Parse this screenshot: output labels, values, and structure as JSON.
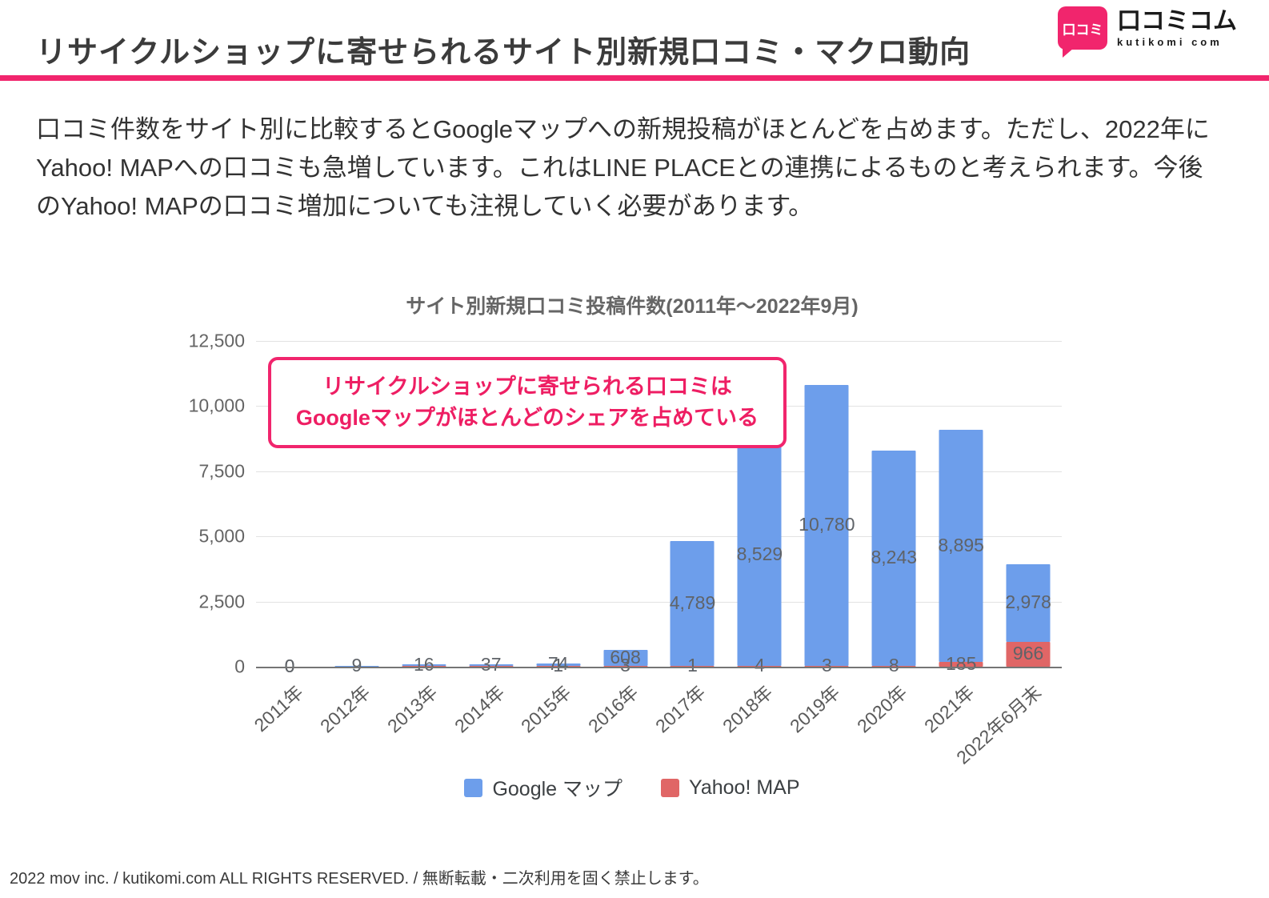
{
  "header": {
    "title": "リサイクルショップに寄せられるサイト別新規口コミ・マクロ動向",
    "logo": {
      "icon_text": "口コミ",
      "name": "口コミコム",
      "subtitle": "kutikomi com"
    },
    "accent_color": "#f1256d"
  },
  "body": {
    "paragraph": "口コミ件数をサイト別に比較するとGoogleマップへの新規投稿がほとんどを占めます。ただし、2022年にYahoo! MAPへの口コミも急増しています。これはLINE PLACEとの連携によるものと考えられます。今後のYahoo! MAPの口コミ増加についても注視していく必要があります。"
  },
  "chart_data": {
    "type": "bar",
    "stacked": true,
    "title": "サイト別新規口コミ投稿件数(2011年〜2022年9月)",
    "categories": [
      "2011年",
      "2012年",
      "2013年",
      "2014年",
      "2015年",
      "2016年",
      "2017年",
      "2018年",
      "2019年",
      "2020年",
      "2021年",
      "2022年6月末"
    ],
    "series": [
      {
        "name": "Google マップ",
        "color": "#6d9eeb",
        "values": [
          0,
          9,
          16,
          37,
          74,
          608,
          4789,
          8529,
          10780,
          8243,
          8895,
          2978
        ],
        "labels": [
          "0",
          "9",
          "16",
          "37",
          "74",
          "608",
          "4,789",
          "8,529",
          "10,780",
          "8,243",
          "8,895",
          "2,978"
        ]
      },
      {
        "name": "Yahoo! MAP",
        "color": "#e06666",
        "values": [
          0,
          0,
          1,
          2,
          1,
          3,
          1,
          4,
          3,
          8,
          185,
          966
        ],
        "labels": [
          "0",
          "",
          "",
          "",
          "1",
          "3",
          "1",
          "4",
          "3",
          "8",
          "185",
          "966"
        ]
      }
    ],
    "ylim": [
      0,
      12500
    ],
    "yticks": [
      "12,500",
      "10,000",
      "7,500",
      "5,000",
      "2,500",
      "0"
    ],
    "grid": true,
    "legend_position": "bottom",
    "annotation": {
      "line1": "リサイクルショップに寄せられる口コミは",
      "line2": "Googleマップがほとんどのシェアを占めている"
    }
  },
  "footer": {
    "text": "2022 mov inc. / kutikomi.com ALL RIGHTS RESERVED. / 無断転載・二次利用を固く禁止します。"
  }
}
